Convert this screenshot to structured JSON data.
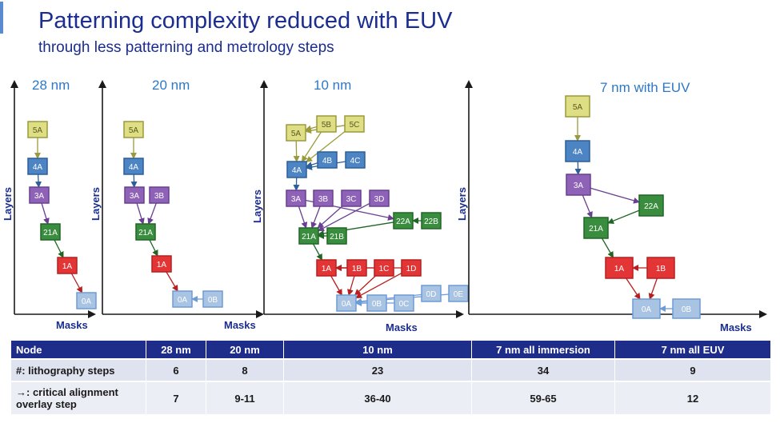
{
  "title": "Patterning complexity reduced with EUV",
  "subtitle": "through less patterning and metrology steps",
  "axis": {
    "y_label": "Layers",
    "x_label": "Masks"
  },
  "colors": {
    "5": "#dede84",
    "4": "#4c84c4",
    "3": "#8e62b6",
    "2": "#3a8c3e",
    "1": "#e33535",
    "0": "#a9c3e3",
    "header": "#1f2d8a",
    "title": "#1b2d8f"
  },
  "panels": [
    {
      "id": "p28",
      "title": "28 nm",
      "show_ylabel": true,
      "nodes": [
        {
          "id": "5A",
          "label": "5A",
          "c": "5"
        },
        {
          "id": "4A",
          "label": "4A",
          "c": "4"
        },
        {
          "id": "3A",
          "label": "3A",
          "c": "3"
        },
        {
          "id": "21A",
          "label": "21A",
          "c": "2"
        },
        {
          "id": "1A",
          "label": "1A",
          "c": "1"
        },
        {
          "id": "0A",
          "label": "0A",
          "c": "0"
        }
      ],
      "edges": [
        [
          "5A",
          "4A"
        ],
        [
          "4A",
          "3A"
        ],
        [
          "3A",
          "21A"
        ],
        [
          "21A",
          "1A"
        ],
        [
          "1A",
          "0A"
        ]
      ]
    },
    {
      "id": "p20",
      "title": "20 nm",
      "show_ylabel": true,
      "nodes": [
        {
          "id": "5A",
          "label": "5A",
          "c": "5"
        },
        {
          "id": "4A",
          "label": "4A",
          "c": "4"
        },
        {
          "id": "3A",
          "label": "3A",
          "c": "3"
        },
        {
          "id": "3B",
          "label": "3B",
          "c": "3"
        },
        {
          "id": "21A",
          "label": "21A",
          "c": "2"
        },
        {
          "id": "1A",
          "label": "1A",
          "c": "1"
        },
        {
          "id": "0A",
          "label": "0A",
          "c": "0"
        },
        {
          "id": "0B",
          "label": "0B",
          "c": "0"
        }
      ],
      "edges": [
        [
          "5A",
          "4A"
        ],
        [
          "4A",
          "3A"
        ],
        [
          "3A",
          "21A"
        ],
        [
          "3B",
          "21A"
        ],
        [
          "21A",
          "1A"
        ],
        [
          "1A",
          "0A"
        ],
        [
          "0B",
          "0A"
        ]
      ]
    },
    {
      "id": "p10",
      "title": "10 nm",
      "show_ylabel": true,
      "nodes": [
        {
          "id": "5A",
          "label": "5A",
          "c": "5"
        },
        {
          "id": "5B",
          "label": "5B",
          "c": "5"
        },
        {
          "id": "5C",
          "label": "5C",
          "c": "5"
        },
        {
          "id": "4A",
          "label": "4A",
          "c": "4"
        },
        {
          "id": "4B",
          "label": "4B",
          "c": "4"
        },
        {
          "id": "4C",
          "label": "4C",
          "c": "4"
        },
        {
          "id": "3A",
          "label": "3A",
          "c": "3"
        },
        {
          "id": "3B",
          "label": "3B",
          "c": "3"
        },
        {
          "id": "3C",
          "label": "3C",
          "c": "3"
        },
        {
          "id": "3D",
          "label": "3D",
          "c": "3"
        },
        {
          "id": "22A",
          "label": "22A",
          "c": "2"
        },
        {
          "id": "22B",
          "label": "22B",
          "c": "2"
        },
        {
          "id": "21A",
          "label": "21A",
          "c": "2"
        },
        {
          "id": "21B",
          "label": "21B",
          "c": "2"
        },
        {
          "id": "1A",
          "label": "1A",
          "c": "1"
        },
        {
          "id": "1B",
          "label": "1B",
          "c": "1"
        },
        {
          "id": "1C",
          "label": "1C",
          "c": "1"
        },
        {
          "id": "1D",
          "label": "1D",
          "c": "1"
        },
        {
          "id": "0A",
          "label": "0A",
          "c": "0"
        },
        {
          "id": "0B",
          "label": "0B",
          "c": "0"
        },
        {
          "id": "0C",
          "label": "0C",
          "c": "0"
        },
        {
          "id": "0D",
          "label": "0D",
          "c": "0"
        },
        {
          "id": "0E",
          "label": "0E",
          "c": "0"
        }
      ],
      "edges": [
        [
          "5B",
          "5A"
        ],
        [
          "5C",
          "5A"
        ],
        [
          "5A",
          "4A"
        ],
        [
          "5B",
          "4A"
        ],
        [
          "5C",
          "4A"
        ],
        [
          "4B",
          "4A"
        ],
        [
          "4C",
          "4A"
        ],
        [
          "4A",
          "3A"
        ],
        [
          "3B",
          "21A"
        ],
        [
          "3C",
          "21A"
        ],
        [
          "3D",
          "21A"
        ],
        [
          "3A",
          "21A"
        ],
        [
          "3A",
          "22A"
        ],
        [
          "22B",
          "22A"
        ],
        [
          "22A",
          "21A"
        ],
        [
          "21B",
          "21A"
        ],
        [
          "21A",
          "1A"
        ],
        [
          "1B",
          "1A"
        ],
        [
          "1C",
          "1A"
        ],
        [
          "1D",
          "1A"
        ],
        [
          "1A",
          "0A"
        ],
        [
          "0B",
          "0A"
        ],
        [
          "0C",
          "0A"
        ],
        [
          "0D",
          "0A"
        ],
        [
          "0E",
          "0A"
        ],
        [
          "1B",
          "0A"
        ],
        [
          "1C",
          "0A"
        ],
        [
          "1D",
          "0A"
        ]
      ]
    },
    {
      "id": "p7",
      "title": "7 nm with EUV",
      "show_ylabel": true,
      "nodes": [
        {
          "id": "5A",
          "label": "5A",
          "c": "5"
        },
        {
          "id": "4A",
          "label": "4A",
          "c": "4"
        },
        {
          "id": "3A",
          "label": "3A",
          "c": "3"
        },
        {
          "id": "22A",
          "label": "22A",
          "c": "2"
        },
        {
          "id": "21A",
          "label": "21A",
          "c": "2"
        },
        {
          "id": "1A",
          "label": "1A",
          "c": "1"
        },
        {
          "id": "1B",
          "label": "1B",
          "c": "1"
        },
        {
          "id": "0A",
          "label": "0A",
          "c": "0"
        },
        {
          "id": "0B",
          "label": "0B",
          "c": "0"
        }
      ],
      "edges": [
        [
          "5A",
          "4A"
        ],
        [
          "4A",
          "3A"
        ],
        [
          "3A",
          "21A"
        ],
        [
          "3A",
          "22A"
        ],
        [
          "22A",
          "21A"
        ],
        [
          "21A",
          "1A"
        ],
        [
          "1B",
          "1A"
        ],
        [
          "1A",
          "0A"
        ],
        [
          "1B",
          "0A"
        ],
        [
          "0B",
          "0A"
        ]
      ]
    }
  ],
  "table": {
    "headers": [
      "Node",
      "28 nm",
      "20 nm",
      "10 nm",
      "7 nm all immersion",
      "7 nm all EUV"
    ],
    "rows": [
      [
        "#: lithography steps",
        "6",
        "8",
        "23",
        "34",
        "9"
      ],
      [
        "→: critical alignment overlay step",
        "7",
        "9-11",
        "36-40",
        "59-65",
        "12"
      ]
    ]
  }
}
